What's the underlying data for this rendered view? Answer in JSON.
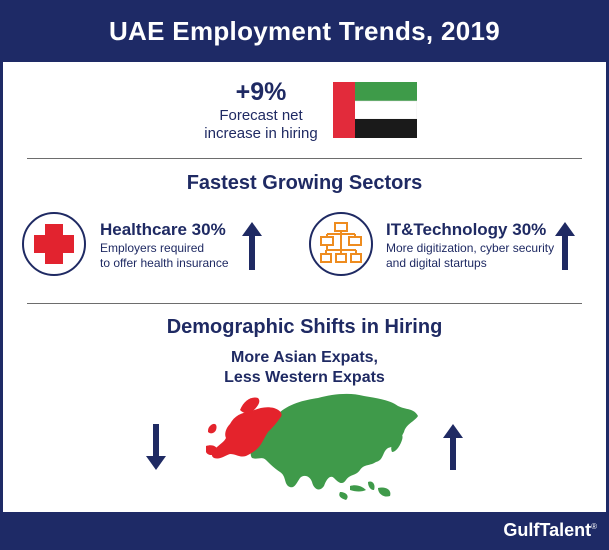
{
  "title": "UAE Employment Trends, 2019",
  "forecast": {
    "value": "+9%",
    "caption_line1": "Forecast net",
    "caption_line2": "increase in hiring"
  },
  "flag": {
    "name": "uae-flag",
    "colors": {
      "red": "#e22b3b",
      "green": "#3e9b49",
      "white": "#ffffff",
      "black": "#1a1a1a"
    }
  },
  "sectors_heading": "Fastest Growing Sectors",
  "sectors": [
    {
      "title": "Healthcare 30%",
      "desc_line1": "Employers required",
      "desc_line2": "to offer health insurance",
      "icon": "medical-cross-icon",
      "trend": "up"
    },
    {
      "title": "IT&Technology 30%",
      "desc_line1": "More digitization, cyber security",
      "desc_line2": "and digital startups",
      "icon": "network-hierarchy-icon",
      "trend": "up"
    }
  ],
  "demographics_heading": "Demographic Shifts in Hiring",
  "demographics": {
    "line1": "More Asian Expats,",
    "line2": "Less Western Expats",
    "western_trend": "down",
    "asian_trend": "up",
    "map_icon": "eurasia-map-icon"
  },
  "brand": {
    "name": "GulfTalent",
    "mark": "®"
  },
  "colors": {
    "navy": "#1e2a66",
    "accent_red": "#e2232f",
    "accent_orange": "#ee8c1f",
    "europe_red": "#e4232c",
    "asia_green": "#3f9a4a"
  }
}
